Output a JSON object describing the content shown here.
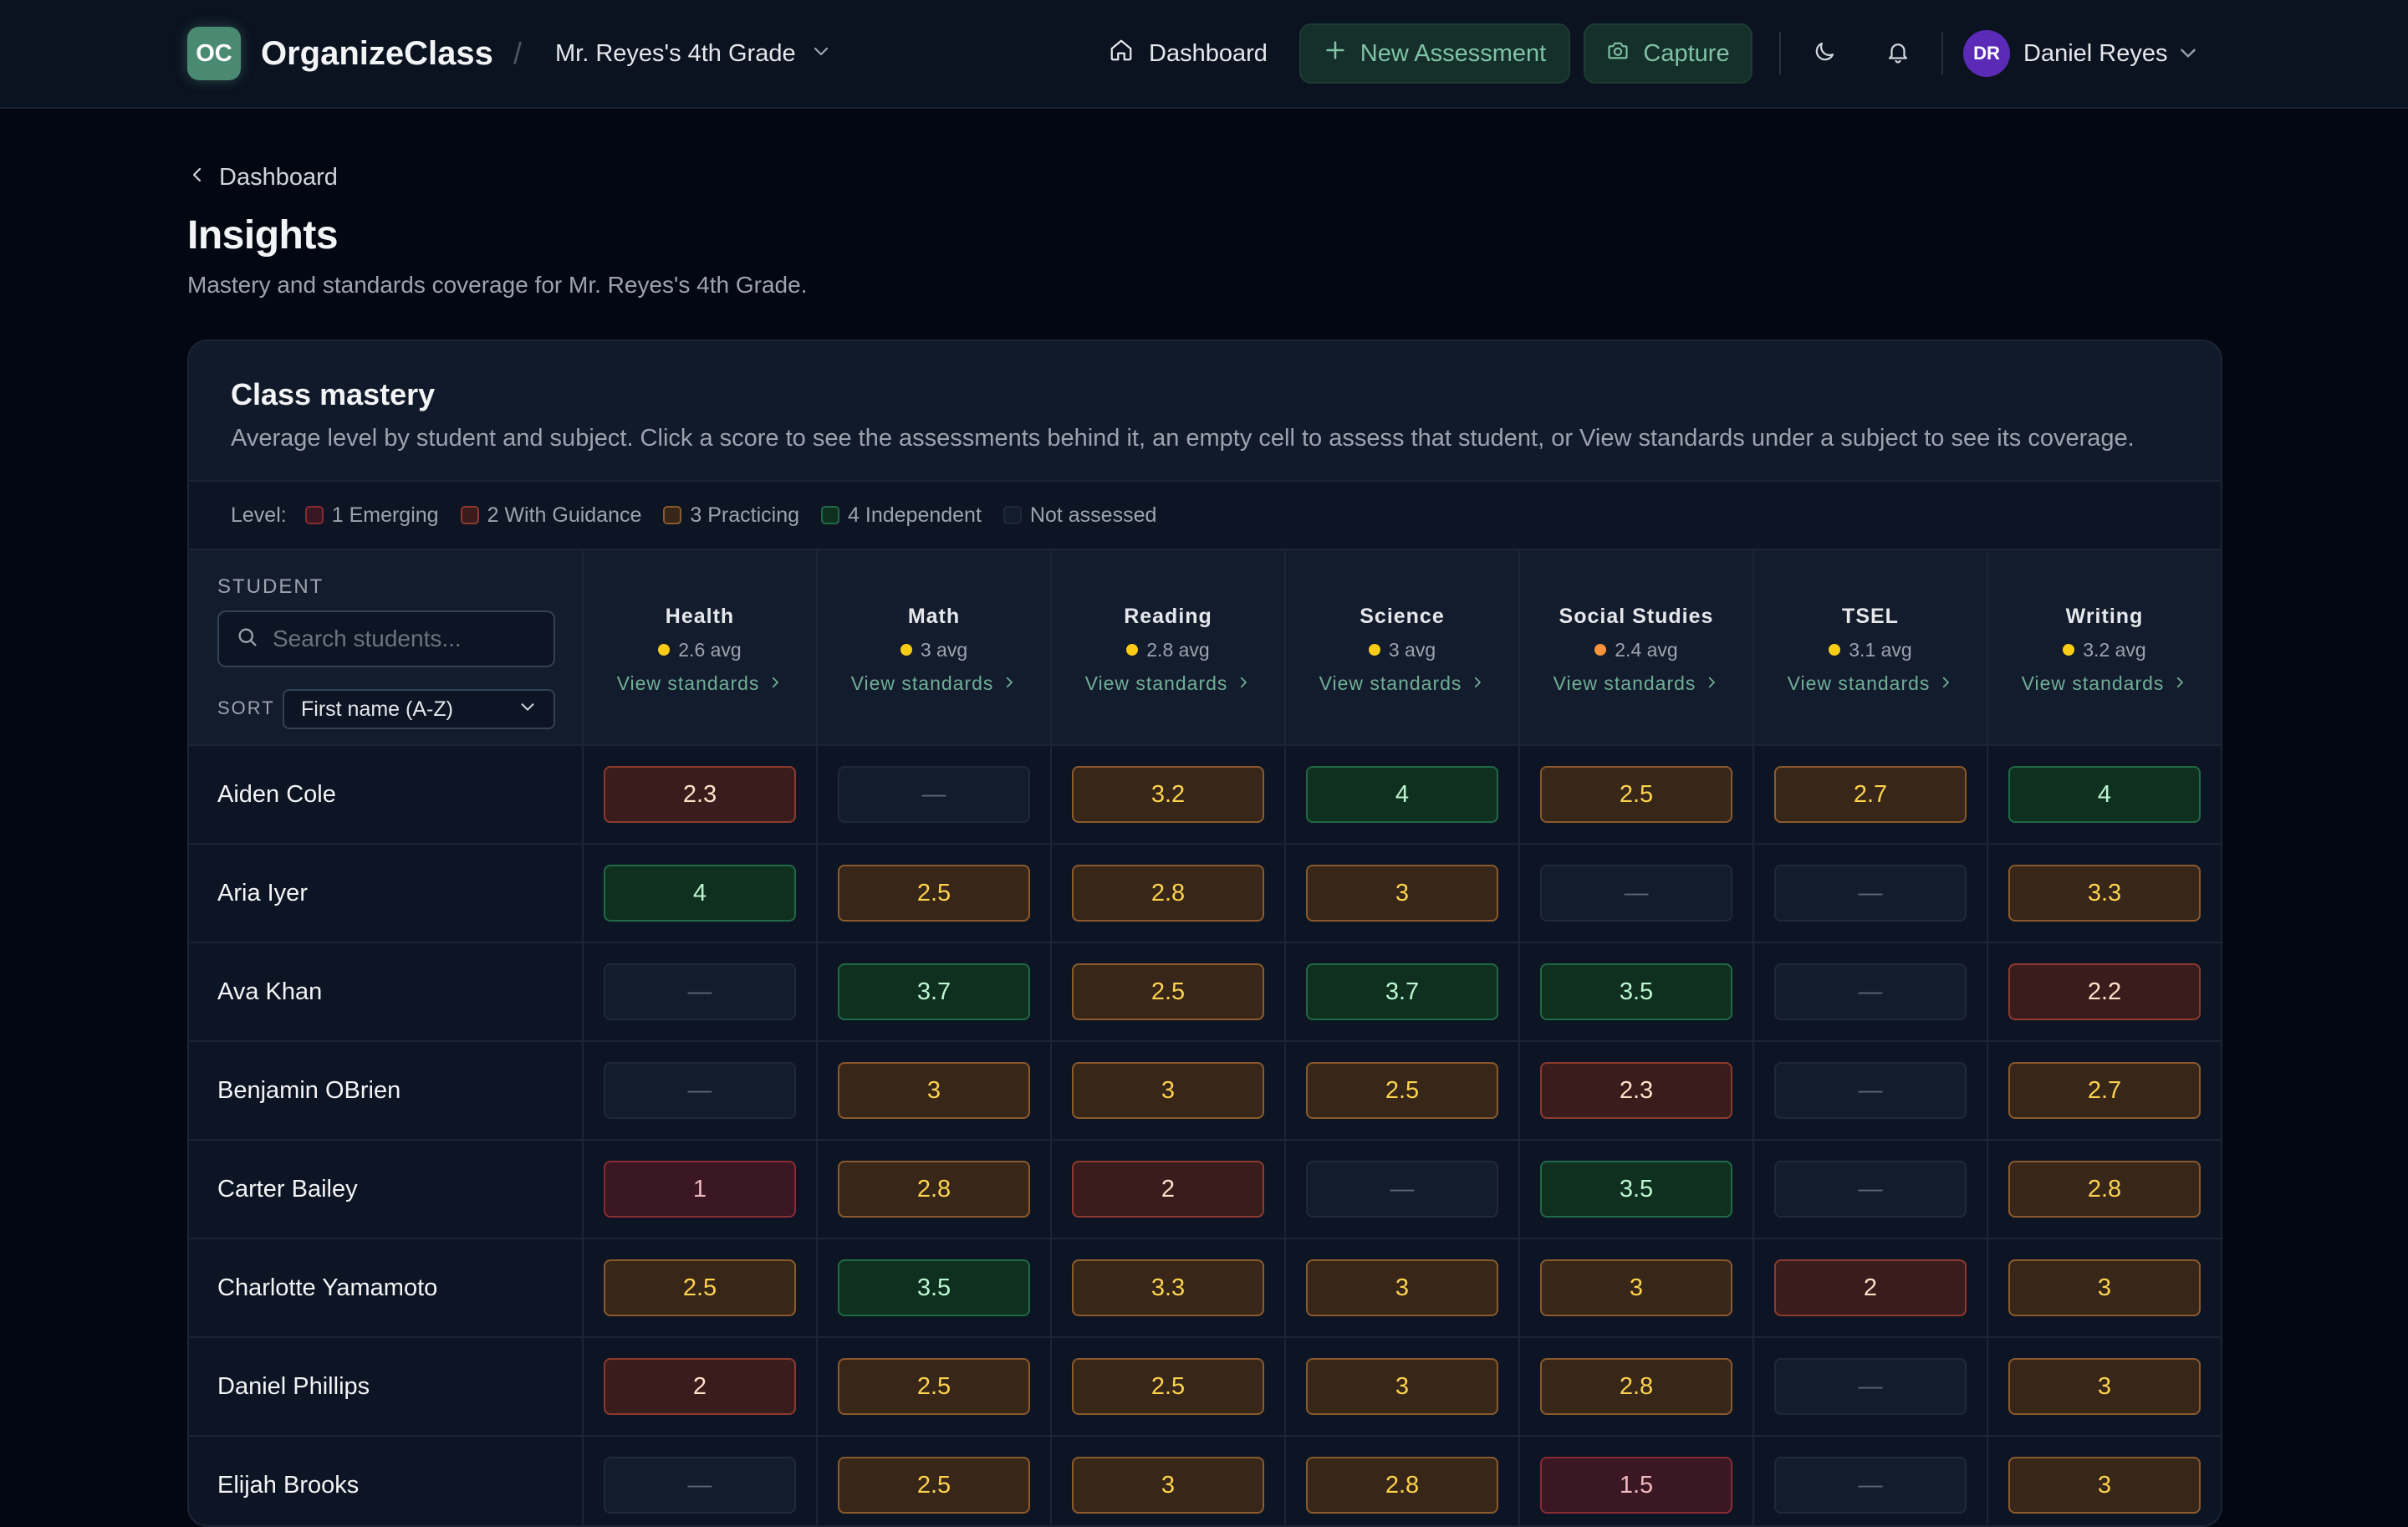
{
  "app": {
    "logo_initials": "OC",
    "name": "OrganizeClass",
    "separator": "/",
    "class_name": "Mr. Reyes's 4th Grade"
  },
  "nav": {
    "dashboard": "Dashboard",
    "new_assessment": "New Assessment",
    "capture": "Capture"
  },
  "user": {
    "initials": "DR",
    "name": "Daniel Reyes"
  },
  "page": {
    "back_label": "Dashboard",
    "title": "Insights",
    "subtitle": "Mastery and standards coverage for Mr. Reyes's 4th Grade."
  },
  "card": {
    "title": "Class mastery",
    "description": "Average level by student and subject. Click a score to see the assessments behind it, an empty cell to assess that student, or View standards under a subject to see its coverage."
  },
  "legend": {
    "label": "Level:",
    "items": [
      {
        "label": "1 Emerging",
        "fill": "#3a1722",
        "border": "#8a2a36"
      },
      {
        "label": "2 With Guidance",
        "fill": "#3b1c1c",
        "border": "#8d3a2e"
      },
      {
        "label": "3 Practicing",
        "fill": "#382619",
        "border": "#8a5a2c"
      },
      {
        "label": "4 Independent",
        "fill": "#10301f",
        "border": "#1f6a44"
      },
      {
        "label": "Not assessed",
        "fill": "#131c2b",
        "border": "#1e293b"
      }
    ]
  },
  "table": {
    "student_header": "STUDENT",
    "search_placeholder": "Search students...",
    "sort_label": "SORT",
    "sort_value": "First name (A-Z)",
    "view_standards": "View standards",
    "empty_mark": "—",
    "subjects": [
      {
        "name": "Health",
        "avg": "2.6 avg",
        "dot": "#facc15"
      },
      {
        "name": "Math",
        "avg": "3 avg",
        "dot": "#facc15"
      },
      {
        "name": "Reading",
        "avg": "2.8 avg",
        "dot": "#facc15"
      },
      {
        "name": "Science",
        "avg": "3 avg",
        "dot": "#facc15"
      },
      {
        "name": "Social Studies",
        "avg": "2.4 avg",
        "dot": "#fb923c"
      },
      {
        "name": "TSEL",
        "avg": "3.1 avg",
        "dot": "#facc15"
      },
      {
        "name": "Writing",
        "avg": "3.2 avg",
        "dot": "#facc15"
      }
    ],
    "rows": [
      {
        "student": "Aiden Cole",
        "scores": [
          "2.3",
          "",
          "3.2",
          "4",
          "2.5",
          "2.7",
          "4"
        ]
      },
      {
        "student": "Aria Iyer",
        "scores": [
          "4",
          "2.5",
          "2.8",
          "3",
          "",
          "",
          "3.3"
        ]
      },
      {
        "student": "Ava Khan",
        "scores": [
          "",
          "3.7",
          "2.5",
          "3.7",
          "3.5",
          "",
          "2.2"
        ]
      },
      {
        "student": "Benjamin OBrien",
        "scores": [
          "",
          "3",
          "3",
          "2.5",
          "2.3",
          "",
          "2.7"
        ]
      },
      {
        "student": "Carter Bailey",
        "scores": [
          "1",
          "2.8",
          "2",
          "",
          "3.5",
          "",
          "2.8"
        ]
      },
      {
        "student": "Charlotte Yamamoto",
        "scores": [
          "2.5",
          "3.5",
          "3.3",
          "3",
          "3",
          "2",
          "3"
        ]
      },
      {
        "student": "Daniel Phillips",
        "scores": [
          "2",
          "2.5",
          "2.5",
          "3",
          "2.8",
          "",
          "3"
        ]
      },
      {
        "student": "Elijah Brooks",
        "scores": [
          "",
          "2.5",
          "3",
          "2.8",
          "1.5",
          "",
          "3"
        ]
      }
    ]
  }
}
